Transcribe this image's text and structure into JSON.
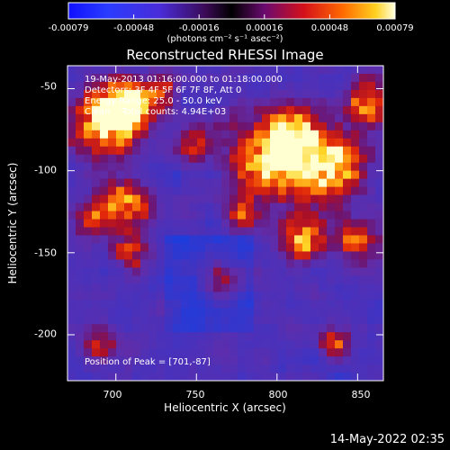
{
  "colorbar": {
    "ticks": [
      "-0.00079",
      "-0.00048",
      "-0.00016",
      "0.00016",
      "0.00048",
      "0.00079"
    ],
    "units_label": "(photons cm⁻² s⁻¹ asec⁻²)"
  },
  "chart": {
    "title": "Reconstructed RHESSI Image",
    "xlabel": "Heliocentric X (arcsec)",
    "ylabel": "Heliocentric Y (arcsec)",
    "info_lines": [
      "19-May-2013 01:16:00.000 to 01:18:00.000",
      "Detectors: 3F 4F 5F 6F 7F 8F, Att 0",
      "Energy Range: 25.0 - 50.0 keV",
      "Clean    Total counts: 4.94E+03"
    ],
    "peak_label": "Position of Peak = [701,-87]"
  },
  "footer": {
    "timestamp": "14-May-2022 02:35"
  },
  "chart_data": {
    "type": "heatmap",
    "title": "Reconstructed RHESSI Image",
    "xlabel": "Heliocentric X (arcsec)",
    "ylabel": "Heliocentric Y (arcsec)",
    "x_ticks": [
      700,
      750,
      800,
      850
    ],
    "y_ticks": [
      -50,
      -100,
      -150,
      -200
    ],
    "xlim": [
      670,
      866
    ],
    "ylim": [
      -228,
      -36
    ],
    "colorbar_range": [
      -0.00079,
      0.00079
    ],
    "peak": [
      701,
      -87
    ],
    "grid": false
  }
}
